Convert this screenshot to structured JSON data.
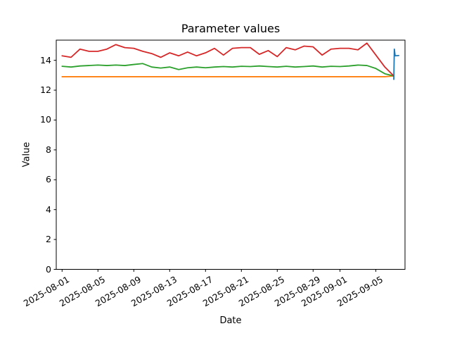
{
  "window": {
    "background": "#ffffff"
  },
  "chart_data": {
    "type": "line",
    "title": "Parameter values",
    "xlabel": "Date",
    "ylabel": "Value",
    "axis_color": "#000000",
    "background": "#ffffff",
    "grid": false,
    "legend": "none",
    "ylim": [
      0,
      15.35
    ],
    "xlim_days": [
      -0.65,
      38.25
    ],
    "x_start_date": "2025-08-01",
    "x_unit": "day",
    "y_ticks": [
      0,
      2,
      4,
      6,
      8,
      10,
      12,
      14
    ],
    "x_ticks": [
      {
        "day": 0,
        "label": "2025-08-01"
      },
      {
        "day": 4,
        "label": "2025-08-05"
      },
      {
        "day": 8,
        "label": "2025-08-09"
      },
      {
        "day": 12,
        "label": "2025-08-13"
      },
      {
        "day": 16,
        "label": "2025-08-17"
      },
      {
        "day": 20,
        "label": "2025-08-21"
      },
      {
        "day": 24,
        "label": "2025-08-25"
      },
      {
        "day": 28,
        "label": "2025-08-29"
      },
      {
        "day": 31,
        "label": "2025-09-01"
      },
      {
        "day": 35,
        "label": "2025-09-05"
      }
    ],
    "series": [
      {
        "name": "orange-line",
        "color": "#ff7f0e",
        "start_day": 0,
        "values": [
          12.9,
          12.9,
          12.9,
          12.9,
          12.9,
          12.9,
          12.9,
          12.9,
          12.9,
          12.9,
          12.9,
          12.9,
          12.9,
          12.9,
          12.9,
          12.9,
          12.9,
          12.9,
          12.9,
          12.9,
          12.9,
          12.9,
          12.9,
          12.9,
          12.9,
          12.9,
          12.9,
          12.9,
          12.9,
          12.9,
          12.9,
          12.9,
          12.9,
          12.9,
          12.9,
          12.9,
          12.9,
          12.95
        ]
      },
      {
        "name": "green-line",
        "color": "#2ca02c",
        "start_day": 0,
        "values": [
          13.6,
          13.55,
          13.62,
          13.65,
          13.68,
          13.65,
          13.68,
          13.65,
          13.72,
          13.78,
          13.55,
          13.48,
          13.55,
          13.38,
          13.5,
          13.55,
          13.5,
          13.55,
          13.58,
          13.55,
          13.6,
          13.58,
          13.62,
          13.58,
          13.55,
          13.6,
          13.55,
          13.58,
          13.62,
          13.55,
          13.6,
          13.58,
          13.62,
          13.68,
          13.65,
          13.45,
          13.1,
          12.95
        ]
      },
      {
        "name": "red-line",
        "color": "#d62728",
        "start_day": 0,
        "values": [
          14.3,
          14.2,
          14.75,
          14.6,
          14.6,
          14.75,
          15.05,
          14.85,
          14.8,
          14.6,
          14.45,
          14.2,
          14.5,
          14.3,
          14.55,
          14.3,
          14.5,
          14.8,
          14.35,
          14.8,
          14.85,
          14.85,
          14.4,
          14.65,
          14.25,
          14.85,
          14.7,
          14.95,
          14.9,
          14.35,
          14.75,
          14.8,
          14.8,
          14.7,
          15.15,
          14.35,
          13.55,
          12.95
        ]
      },
      {
        "name": "blue-line",
        "color": "#1f77b4",
        "x_days": [
          37.0,
          37.06,
          37.15,
          37.55
        ],
        "values": [
          12.72,
          14.75,
          14.3,
          14.32
        ]
      }
    ]
  }
}
